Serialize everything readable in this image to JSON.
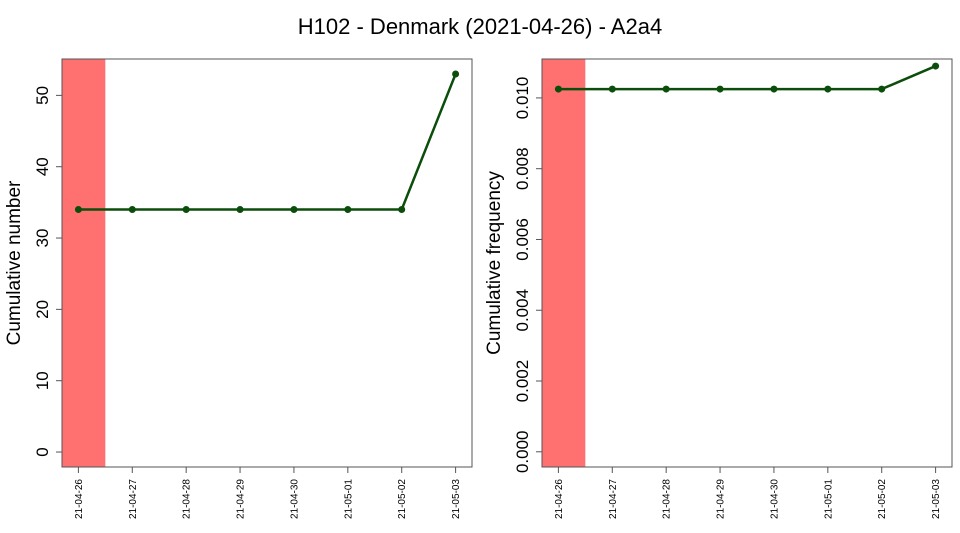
{
  "title": "H102 - Denmark (2021-04-26) - A2a4",
  "colors": {
    "line": "#0b4d0b",
    "highlight": "#ff7070",
    "axis": "#555555"
  },
  "chart_data": [
    {
      "type": "line",
      "ylabel": "Cumulative number",
      "categories": [
        "21-04-26",
        "21-04-27",
        "21-04-28",
        "21-04-29",
        "21-04-30",
        "21-05-01",
        "21-05-02",
        "21-05-03"
      ],
      "yticks": [
        "0",
        "10",
        "20",
        "30",
        "40",
        "50"
      ],
      "ytick_values": [
        0,
        10,
        20,
        30,
        40,
        50
      ],
      "ylim": [
        -2.1,
        55.1
      ],
      "series": [
        {
          "values": [
            34,
            34,
            34,
            34,
            34,
            34,
            34,
            53
          ]
        }
      ],
      "highlight_span": [
        "21-04-26",
        "21-04-26"
      ]
    },
    {
      "type": "line",
      "ylabel": "Cumulative frequency",
      "categories": [
        "21-04-26",
        "21-04-27",
        "21-04-28",
        "21-04-29",
        "21-04-30",
        "21-05-01",
        "21-05-02",
        "21-05-03"
      ],
      "yticks": [
        "0.000",
        "0.002",
        "0.004",
        "0.006",
        "0.008",
        "0.010"
      ],
      "ytick_values": [
        0,
        0.002,
        0.004,
        0.006,
        0.008,
        0.01
      ],
      "ylim": [
        -0.00043,
        0.0111
      ],
      "series": [
        {
          "values": [
            0.01025,
            0.01025,
            0.01025,
            0.01025,
            0.01025,
            0.01025,
            0.01025,
            0.0109
          ]
        }
      ],
      "highlight_span": [
        "21-04-26",
        "21-04-26"
      ]
    }
  ]
}
